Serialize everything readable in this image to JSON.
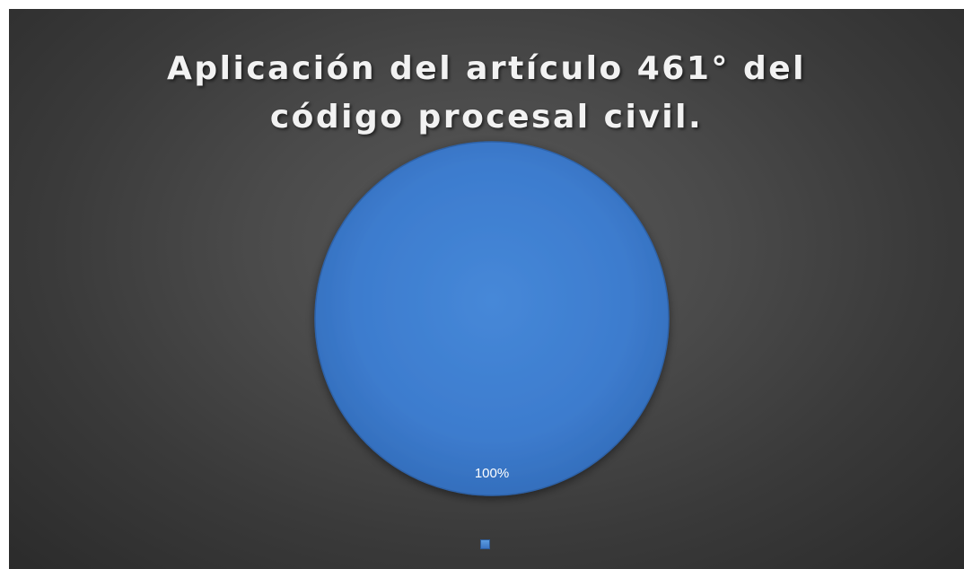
{
  "chart_data": {
    "type": "pie",
    "title": "Aplicación del artículo 461° del código procesal civil.",
    "categories": [
      ""
    ],
    "values": [
      100
    ],
    "data_labels": [
      "100%"
    ],
    "legend": {
      "position": "bottom",
      "entries": [
        ""
      ]
    },
    "colors": {
      "slice": "#3f7fd2",
      "slice_edge": "#2e62a8",
      "background": "#404040",
      "title_text": "#f2f2f2",
      "label_text": "#ffffff"
    }
  }
}
